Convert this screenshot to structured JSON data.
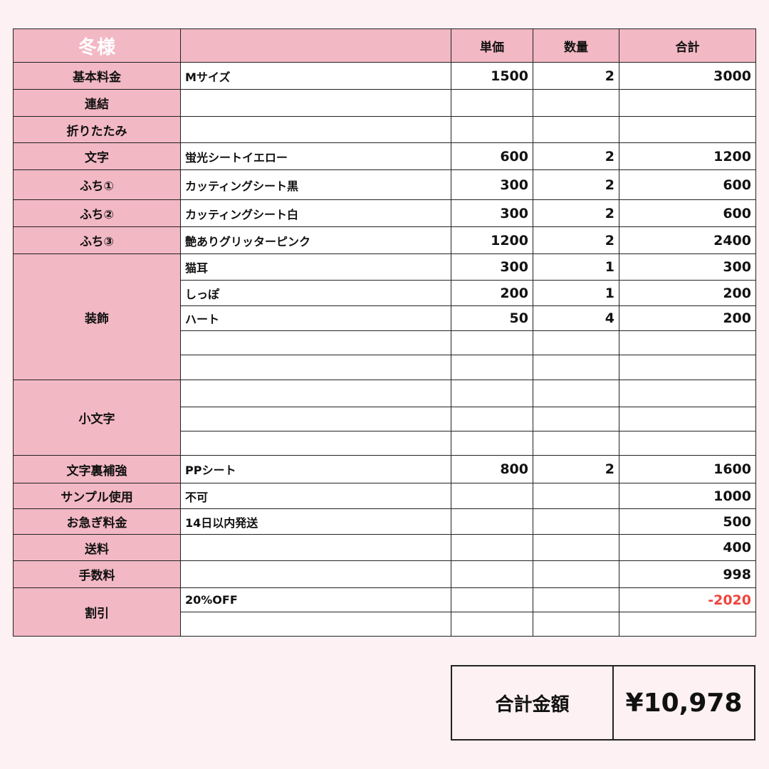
{
  "header": {
    "customer": "冬様",
    "blank": "",
    "price": "単価",
    "qty": "数量",
    "total": "合計"
  },
  "groups": [
    {
      "label": "基本料金",
      "items": [
        {
          "name": "Mサイズ",
          "price": "1500",
          "qty": "2",
          "total": "3000"
        }
      ]
    },
    {
      "label": "連結",
      "items": [
        {
          "name": "",
          "price": "",
          "qty": "",
          "total": ""
        }
      ]
    },
    {
      "label": "折りたたみ",
      "items": [
        {
          "name": "",
          "price": "",
          "qty": "",
          "total": ""
        }
      ]
    },
    {
      "label": "文字",
      "items": [
        {
          "name": "蛍光シートイエロー",
          "price": "600",
          "qty": "2",
          "total": "1200"
        }
      ]
    },
    {
      "label": "ふち①",
      "items": [
        {
          "name": "カッティングシート黒",
          "price": "300",
          "qty": "2",
          "total": "600"
        }
      ]
    },
    {
      "label": "ふち②",
      "items": [
        {
          "name": "カッティングシート白",
          "price": "300",
          "qty": "2",
          "total": "600"
        }
      ]
    },
    {
      "label": "ふち③",
      "items": [
        {
          "name": "艶ありグリッターピンク",
          "price": "1200",
          "qty": "2",
          "total": "2400"
        }
      ]
    },
    {
      "label": "装飾",
      "items": [
        {
          "name": "猫耳",
          "price": "300",
          "qty": "1",
          "total": "300"
        },
        {
          "name": "しっぽ",
          "price": "200",
          "qty": "1",
          "total": "200"
        },
        {
          "name": "ハート",
          "price": "50",
          "qty": "4",
          "total": "200"
        },
        {
          "name": "",
          "price": "",
          "qty": "",
          "total": ""
        },
        {
          "name": "",
          "price": "",
          "qty": "",
          "total": ""
        }
      ]
    },
    {
      "label": "小文字",
      "items": [
        {
          "name": "",
          "price": "",
          "qty": "",
          "total": ""
        },
        {
          "name": "",
          "price": "",
          "qty": "",
          "total": ""
        },
        {
          "name": "",
          "price": "",
          "qty": "",
          "total": ""
        }
      ]
    },
    {
      "label": "文字裏補強",
      "items": [
        {
          "name": "PPシート",
          "price": "800",
          "qty": "2",
          "total": "1600"
        }
      ]
    },
    {
      "label": "サンプル使用",
      "items": [
        {
          "name": "不可",
          "price": "",
          "qty": "",
          "total": "1000"
        }
      ]
    },
    {
      "label": "お急ぎ料金",
      "items": [
        {
          "name": "14日以内発送",
          "price": "",
          "qty": "",
          "total": "500"
        }
      ]
    },
    {
      "label": "送料",
      "items": [
        {
          "name": "",
          "price": "",
          "qty": "",
          "total": "400"
        }
      ]
    },
    {
      "label": "手数料",
      "items": [
        {
          "name": "",
          "price": "",
          "qty": "",
          "total": "998"
        }
      ]
    },
    {
      "label": "割引",
      "items": [
        {
          "name": "20%OFF",
          "price": "",
          "qty": "",
          "total": "-2020",
          "negative": true
        },
        {
          "name": "",
          "price": "",
          "qty": "",
          "total": ""
        }
      ]
    }
  ],
  "summary": {
    "label": "合計金額",
    "value": "¥10,978"
  },
  "colors": {
    "header_pink": "#f2b8c4",
    "background": "#fdf1f3",
    "negative": "#f0443c"
  }
}
